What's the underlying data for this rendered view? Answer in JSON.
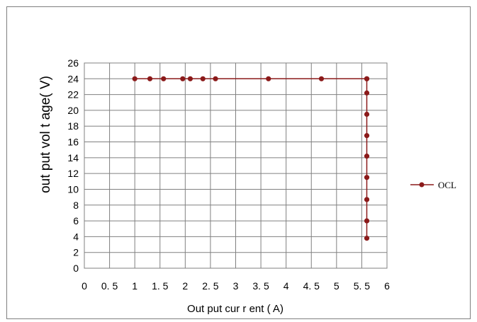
{
  "chart_data": {
    "type": "line",
    "xlabel": "Out put   cur r ent ( A)",
    "ylabel": "out put   vol t age( V)",
    "xlim": [
      0,
      6
    ],
    "ylim": [
      0,
      26
    ],
    "x_ticks": [
      0,
      0.5,
      1,
      1.5,
      2,
      2.5,
      3,
      3.5,
      4,
      4.5,
      5,
      5.5,
      6
    ],
    "x_tick_labels": [
      "0",
      "0. 5",
      "1",
      "1. 5",
      "2",
      "2. 5",
      "3",
      "3. 5",
      "4",
      "4. 5",
      "5",
      "5. 5",
      "6"
    ],
    "y_ticks": [
      0,
      2,
      4,
      6,
      8,
      10,
      12,
      14,
      16,
      18,
      20,
      22,
      24,
      26
    ],
    "y_tick_labels": [
      "0",
      "2",
      "4",
      "6",
      "8",
      "10",
      "12",
      "14",
      "16",
      "18",
      "20",
      "22",
      "24",
      "26"
    ],
    "grid": true,
    "legend_position": "right",
    "series": [
      {
        "name": "OCL",
        "color": "#8b1a1a",
        "x": [
          1.0,
          1.3,
          1.57,
          1.95,
          2.1,
          2.35,
          2.6,
          3.65,
          4.7,
          5.6,
          5.6,
          5.6,
          5.6,
          5.6,
          5.6,
          5.6,
          5.6,
          5.6,
          5.6
        ],
        "y": [
          24,
          24,
          24,
          24,
          24,
          24,
          24,
          24,
          24,
          24,
          24,
          22.2,
          19.5,
          16.8,
          14.2,
          11.5,
          8.7,
          6.0,
          3.8
        ]
      }
    ]
  }
}
